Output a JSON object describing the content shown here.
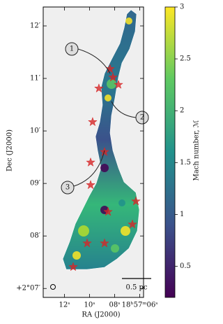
{
  "chart_data": {
    "type": "image",
    "xlabel": "RA (J2000)",
    "ylabel": "Dec (J2000)",
    "colorbar_label": "Mach number, ℳ",
    "colormap": "viridis",
    "xlim": [
      13.7,
      5.7
    ],
    "ylim": [
      6.83,
      12.36
    ],
    "clim": [
      0.2,
      3.0
    ],
    "xticks": [
      {
        "value": 12,
        "label": "12ˢ"
      },
      {
        "value": 10,
        "label": "10ˢ"
      },
      {
        "value": 8,
        "label": "08ˢ"
      },
      {
        "value": 6,
        "label": "18ʰ57ᵐ06ˢ"
      }
    ],
    "yticks": [
      {
        "value": 7,
        "label": "+2°07′"
      },
      {
        "value": 8,
        "label": "08′"
      },
      {
        "value": 9,
        "label": "09′"
      },
      {
        "value": 10,
        "label": "10′"
      },
      {
        "value": 11,
        "label": "11′"
      },
      {
        "value": 12,
        "label": "12′"
      }
    ],
    "cticks": [
      0.5,
      1.0,
      1.5,
      2.0,
      2.5,
      3.0
    ],
    "stars": {
      "color": "#d62728",
      "x": [
        8.37,
        7.7,
        9.26,
        8.14,
        9.76,
        8.81,
        9.92,
        9.92,
        6.31,
        8.53,
        6.59,
        8.81,
        10.2,
        11.31
      ],
      "y": [
        11.18,
        10.88,
        10.81,
        11.02,
        10.17,
        9.6,
        9.4,
        8.97,
        8.66,
        8.46,
        8.22,
        7.86,
        7.86,
        7.41
      ]
    },
    "annotations": [
      "1",
      "2",
      "3"
    ],
    "scalebar": "0.5 pc"
  }
}
